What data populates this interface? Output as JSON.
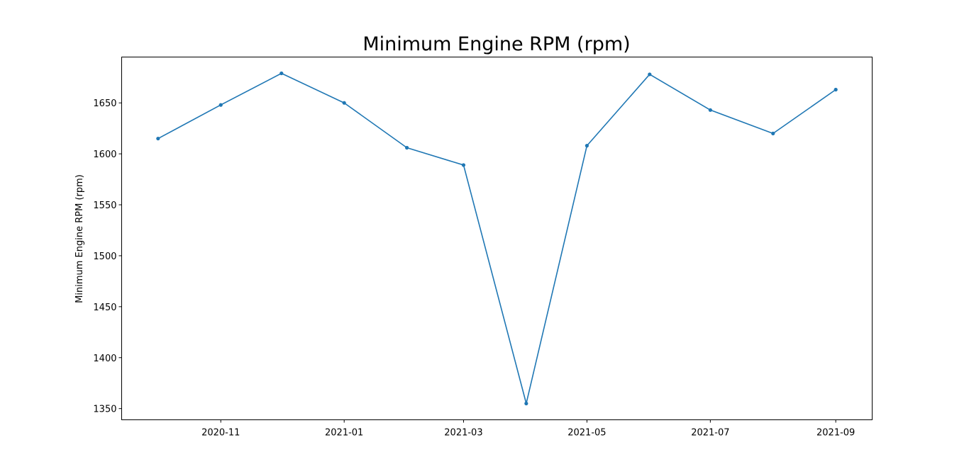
{
  "chart_data": {
    "type": "line",
    "title": "Minimum Engine RPM (rpm)",
    "xlabel": "",
    "ylabel": "Minimum Engine RPM (rpm)",
    "x": [
      "2020-10-01",
      "2020-11-01",
      "2020-12-01",
      "2021-01-01",
      "2021-02-01",
      "2021-03-01",
      "2021-04-01",
      "2021-05-01",
      "2021-06-01",
      "2021-07-01",
      "2021-08-01",
      "2021-09-01"
    ],
    "series": [
      {
        "values": [
          1615,
          1648,
          1679,
          1650,
          1606,
          1589,
          1355,
          1608,
          1678,
          1643,
          1620,
          1663
        ],
        "color": "#1f77b4",
        "marker": "dot"
      }
    ],
    "xticks": [
      "2020-11",
      "2021-01",
      "2021-03",
      "2021-05",
      "2021-07",
      "2021-09"
    ],
    "yticks": [
      1350,
      1400,
      1450,
      1500,
      1550,
      1600,
      1650
    ],
    "xlim": [
      "2020-09-13",
      "2021-09-19"
    ],
    "ylim": [
      1339,
      1695
    ],
    "grid": false,
    "legend": "none"
  }
}
